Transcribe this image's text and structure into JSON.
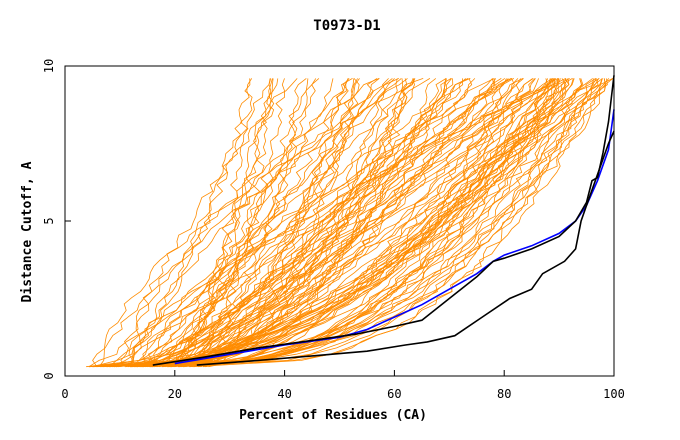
{
  "chart_data": {
    "type": "line",
    "title": "T0973-D1",
    "xlabel": "Percent of Residues (CA)",
    "ylabel": "Distance Cutoff, A",
    "xlim": [
      0,
      100
    ],
    "ylim": [
      0,
      10
    ],
    "x_ticks": [
      "0",
      "20",
      "40",
      "60",
      "80",
      "100"
    ],
    "y_ticks": [
      "0",
      "5",
      "10"
    ],
    "grid": false,
    "background_bundle": {
      "color": "#ff8c00",
      "count": 120,
      "description_note": ""
    },
    "series": [
      {
        "color": "#0000ff",
        "x": [
          20,
          30,
          40,
          50,
          55,
          60,
          65,
          70,
          75,
          78,
          80,
          85,
          90,
          93,
          95,
          97,
          99,
          100
        ],
        "y": [
          0.4,
          0.7,
          1.0,
          1.25,
          1.5,
          1.9,
          2.3,
          2.8,
          3.3,
          3.7,
          3.9,
          4.2,
          4.6,
          5.0,
          5.5,
          6.3,
          7.3,
          8.6
        ]
      },
      {
        "color": "#000000",
        "x": [
          16,
          25,
          35,
          45,
          53,
          60,
          65,
          70,
          75,
          78,
          80,
          85,
          90,
          93,
          95,
          96,
          97,
          98,
          99,
          100
        ],
        "y": [
          0.35,
          0.6,
          0.9,
          1.15,
          1.35,
          1.6,
          1.8,
          2.5,
          3.2,
          3.7,
          3.8,
          4.1,
          4.5,
          5.0,
          5.6,
          6.3,
          6.4,
          7.2,
          8.2,
          9.7
        ]
      },
      {
        "color": "#000000",
        "x": [
          24,
          35,
          45,
          55,
          62,
          66,
          71,
          76,
          81,
          85,
          87,
          91,
          93,
          94,
          95,
          96,
          97,
          98,
          99,
          100
        ],
        "y": [
          0.35,
          0.5,
          0.65,
          0.8,
          1.0,
          1.1,
          1.3,
          1.9,
          2.5,
          2.8,
          3.3,
          3.7,
          4.1,
          5.0,
          5.5,
          6.0,
          6.5,
          7.0,
          7.5,
          7.9
        ]
      }
    ]
  }
}
